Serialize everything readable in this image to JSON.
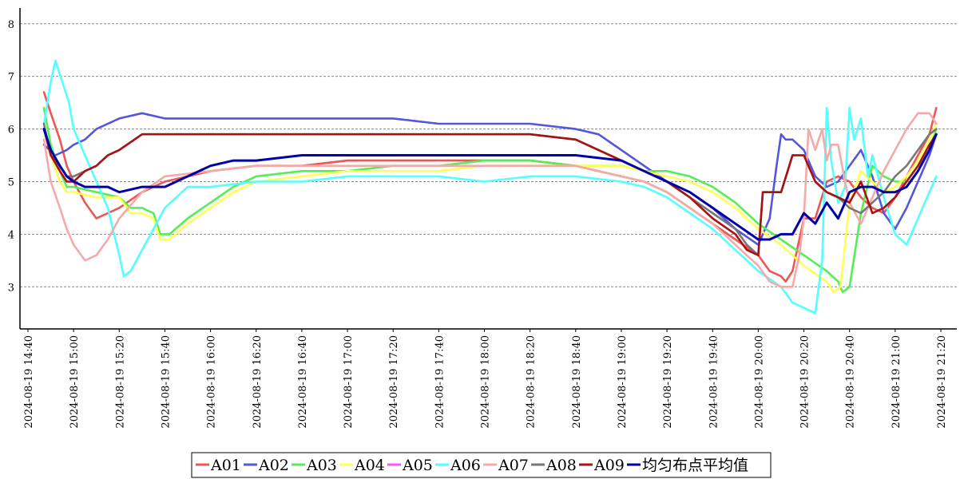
{
  "chart_data": {
    "type": "line",
    "title": "",
    "xlabel": "",
    "ylabel": "",
    "ylim": [
      2.2,
      8.3
    ],
    "yticks": [
      "3",
      "4",
      "5",
      "6",
      "7",
      "8"
    ],
    "x_range": [
      "2024-08-19 14:40",
      "2024-08-19 21:20"
    ],
    "x_tick_labels": [
      "2024-08-19 14:40",
      "2024-08-19 15:00",
      "2024-08-19 15:20",
      "2024-08-19 15:40",
      "2024-08-19 16:00",
      "2024-08-19 16:20",
      "2024-08-19 16:40",
      "2024-08-19 17:00",
      "2024-08-19 17:20",
      "2024-08-19 17:40",
      "2024-08-19 18:00",
      "2024-08-19 18:20",
      "2024-08-19 18:40",
      "2024-08-19 19:00",
      "2024-08-19 19:20",
      "2024-08-19 19:40",
      "2024-08-19 20:00",
      "2024-08-19 20:20",
      "2024-08-19 20:40",
      "2024-08-19 21:00",
      "2024-08-19 21:20"
    ],
    "grid": "horizontal dashed",
    "legend_position": "bottom",
    "series": [
      {
        "name": "A01",
        "color": "#ee5555",
        "x": [
          "14:47",
          "14:50",
          "14:54",
          "14:57",
          "15:00",
          "15:05",
          "15:10",
          "15:15",
          "15:20",
          "15:30",
          "15:40",
          "16:00",
          "16:20",
          "16:40",
          "17:00",
          "17:20",
          "17:40",
          "18:00",
          "18:20",
          "18:40",
          "18:50",
          "19:00",
          "19:10",
          "19:20",
          "19:30",
          "19:40",
          "19:50",
          "20:00",
          "20:05",
          "20:10",
          "20:12",
          "20:15",
          "20:20",
          "20:25",
          "20:30",
          "20:35",
          "20:40",
          "20:45",
          "20:50",
          "20:55",
          "21:00",
          "21:05",
          "21:10",
          "21:15",
          "21:18"
        ],
        "y": [
          6.7,
          6.3,
          5.8,
          5.3,
          5.0,
          4.6,
          4.3,
          4.4,
          4.5,
          4.8,
          5.0,
          5.2,
          5.3,
          5.3,
          5.4,
          5.4,
          5.4,
          5.4,
          5.4,
          5.3,
          5.2,
          5.1,
          5.0,
          4.8,
          4.5,
          4.2,
          3.9,
          3.6,
          3.3,
          3.2,
          3.1,
          3.3,
          4.3,
          4.3,
          5.0,
          5.1,
          5.0,
          4.7,
          4.5,
          4.4,
          4.7,
          5.1,
          5.5,
          5.9,
          6.4
        ]
      },
      {
        "name": "A02",
        "color": "#5555dd",
        "x": [
          "14:47",
          "14:52",
          "14:57",
          "15:00",
          "15:05",
          "15:10",
          "15:15",
          "15:20",
          "15:30",
          "15:40",
          "16:00",
          "16:20",
          "16:40",
          "17:00",
          "17:20",
          "17:40",
          "18:00",
          "18:20",
          "18:40",
          "18:50",
          "19:00",
          "19:10",
          "19:20",
          "19:30",
          "19:40",
          "19:50",
          "20:00",
          "20:05",
          "20:08",
          "20:10",
          "20:12",
          "20:15",
          "20:20",
          "20:25",
          "20:30",
          "20:35",
          "20:40",
          "20:45",
          "20:50",
          "20:55",
          "21:00",
          "21:05",
          "21:10",
          "21:15",
          "21:18"
        ],
        "y": [
          5.7,
          5.5,
          5.6,
          5.7,
          5.8,
          6.0,
          6.1,
          6.2,
          6.3,
          6.2,
          6.2,
          6.2,
          6.2,
          6.2,
          6.2,
          6.1,
          6.1,
          6.1,
          6.0,
          5.9,
          5.6,
          5.3,
          5.0,
          4.8,
          4.5,
          4.1,
          3.8,
          4.3,
          5.3,
          5.9,
          5.8,
          5.8,
          5.6,
          5.1,
          4.9,
          5.0,
          5.3,
          5.6,
          5.1,
          4.4,
          4.1,
          4.5,
          5.0,
          5.5,
          5.9
        ]
      },
      {
        "name": "A03",
        "color": "#55ee55",
        "x": [
          "14:47",
          "14:50",
          "14:54",
          "14:57",
          "15:00",
          "15:10",
          "15:20",
          "15:25",
          "15:30",
          "15:35",
          "15:38",
          "15:42",
          "15:50",
          "16:00",
          "16:10",
          "16:20",
          "16:40",
          "17:00",
          "17:20",
          "17:40",
          "18:00",
          "18:20",
          "18:40",
          "19:00",
          "19:10",
          "19:20",
          "19:30",
          "19:40",
          "19:50",
          "20:00",
          "20:10",
          "20:20",
          "20:30",
          "20:35",
          "20:37",
          "20:40",
          "20:45",
          "20:50",
          "20:55",
          "21:00",
          "21:05",
          "21:10",
          "21:15",
          "21:18"
        ],
        "y": [
          6.4,
          5.7,
          5.2,
          4.9,
          4.9,
          4.8,
          4.7,
          4.5,
          4.5,
          4.4,
          4.0,
          4.0,
          4.3,
          4.6,
          4.9,
          5.1,
          5.2,
          5.2,
          5.3,
          5.3,
          5.4,
          5.4,
          5.3,
          5.3,
          5.2,
          5.2,
          5.1,
          4.9,
          4.6,
          4.2,
          3.9,
          3.6,
          3.3,
          3.1,
          2.9,
          3.0,
          4.4,
          5.3,
          5.1,
          5.0,
          5.0,
          5.3,
          5.6,
          6.0
        ]
      },
      {
        "name": "A04",
        "color": "#ffff55",
        "x": [
          "14:47",
          "14:50",
          "14:54",
          "14:57",
          "15:00",
          "15:10",
          "15:20",
          "15:25",
          "15:30",
          "15:35",
          "15:38",
          "15:42",
          "15:50",
          "16:00",
          "16:10",
          "16:20",
          "16:40",
          "17:00",
          "17:20",
          "17:40",
          "18:00",
          "18:20",
          "18:40",
          "19:00",
          "19:10",
          "19:20",
          "19:30",
          "19:40",
          "19:50",
          "20:00",
          "20:10",
          "20:20",
          "20:30",
          "20:33",
          "20:36",
          "20:40",
          "20:45",
          "20:50",
          "20:55",
          "21:00",
          "21:05",
          "21:10",
          "21:15",
          "21:18"
        ],
        "y": [
          6.0,
          5.5,
          5.0,
          4.8,
          4.8,
          4.7,
          4.7,
          4.4,
          4.4,
          4.3,
          3.9,
          3.9,
          4.2,
          4.5,
          4.8,
          5.0,
          5.1,
          5.2,
          5.2,
          5.2,
          5.3,
          5.3,
          5.3,
          5.3,
          5.2,
          5.1,
          5.0,
          4.8,
          4.5,
          4.1,
          3.8,
          3.4,
          3.1,
          2.9,
          3.0,
          4.6,
          5.2,
          5.0,
          4.8,
          4.9,
          5.1,
          5.4,
          5.8,
          6.1
        ]
      },
      {
        "name": "A05",
        "color": "#ff55ff",
        "x": [],
        "y": []
      },
      {
        "name": "A06",
        "color": "#55ffff",
        "x": [
          "14:47",
          "14:50",
          "14:52",
          "14:55",
          "14:58",
          "15:00",
          "15:05",
          "15:10",
          "15:15",
          "15:20",
          "15:22",
          "15:25",
          "15:30",
          "15:35",
          "15:40",
          "15:45",
          "15:50",
          "16:00",
          "16:20",
          "16:40",
          "17:00",
          "17:20",
          "17:40",
          "18:00",
          "18:20",
          "18:40",
          "19:00",
          "19:10",
          "19:20",
          "19:30",
          "19:40",
          "19:50",
          "20:00",
          "20:10",
          "20:15",
          "20:20",
          "20:25",
          "20:28",
          "20:30",
          "20:32",
          "20:35",
          "20:38",
          "20:40",
          "20:42",
          "20:45",
          "20:48",
          "20:50",
          "20:55",
          "21:00",
          "21:05",
          "21:10",
          "21:15",
          "21:18"
        ],
        "y": [
          6.1,
          6.9,
          7.3,
          6.9,
          6.5,
          6.0,
          5.5,
          5.0,
          4.5,
          3.6,
          3.2,
          3.3,
          3.7,
          4.1,
          4.5,
          4.7,
          4.9,
          4.9,
          5.0,
          5.0,
          5.1,
          5.1,
          5.1,
          5.0,
          5.1,
          5.1,
          5.0,
          4.9,
          4.7,
          4.4,
          4.1,
          3.7,
          3.3,
          3.0,
          2.7,
          2.6,
          2.5,
          3.5,
          6.4,
          5.4,
          4.6,
          4.9,
          6.4,
          5.8,
          6.2,
          5.1,
          5.5,
          4.7,
          4.0,
          3.8,
          4.3,
          4.8,
          5.1
        ]
      },
      {
        "name": "A07",
        "color": "#f5aaaa",
        "x": [
          "14:47",
          "14:50",
          "14:54",
          "14:57",
          "15:00",
          "15:05",
          "15:10",
          "15:15",
          "15:20",
          "15:30",
          "15:40",
          "16:00",
          "16:20",
          "16:40",
          "17:00",
          "17:20",
          "17:40",
          "18:00",
          "18:20",
          "18:40",
          "19:00",
          "19:10",
          "19:20",
          "19:30",
          "19:40",
          "19:50",
          "20:00",
          "20:05",
          "20:10",
          "20:15",
          "20:18",
          "20:20",
          "20:22",
          "20:25",
          "20:28",
          "20:30",
          "20:32",
          "20:35",
          "20:38",
          "20:40",
          "20:45",
          "20:50",
          "20:55",
          "21:00",
          "21:05",
          "21:10",
          "21:15",
          "21:18"
        ],
        "y": [
          5.8,
          5.0,
          4.5,
          4.1,
          3.8,
          3.5,
          3.6,
          3.9,
          4.3,
          4.8,
          5.1,
          5.2,
          5.3,
          5.3,
          5.3,
          5.3,
          5.3,
          5.3,
          5.3,
          5.3,
          5.1,
          5.0,
          4.8,
          4.5,
          4.2,
          3.8,
          3.4,
          3.1,
          3.0,
          3.0,
          3.6,
          4.3,
          6.0,
          5.6,
          6.0,
          5.4,
          5.7,
          5.7,
          5.0,
          4.6,
          4.2,
          4.7,
          5.2,
          5.6,
          6.0,
          6.3,
          6.3,
          6.1
        ]
      },
      {
        "name": "A08",
        "color": "#777777",
        "x": [
          "14:47",
          "14:50",
          "14:54",
          "14:57",
          "15:00",
          "15:05",
          "15:10",
          "15:15",
          "15:20",
          "15:30",
          "15:40",
          "16:00",
          "16:20",
          "16:40",
          "17:00",
          "17:20",
          "17:40",
          "18:00",
          "18:20",
          "18:40",
          "18:50",
          "19:00",
          "19:10",
          "19:20",
          "19:30",
          "19:40",
          "19:50",
          "19:55",
          "20:00",
          "20:02",
          "20:05",
          "20:10",
          "20:15",
          "20:20",
          "20:25",
          "20:30",
          "20:35",
          "20:40",
          "20:45",
          "20:50",
          "20:55",
          "21:00",
          "21:05",
          "21:10",
          "21:15",
          "21:18"
        ],
        "y": [
          6.1,
          5.5,
          5.3,
          5.1,
          5.1,
          5.2,
          5.3,
          5.5,
          5.6,
          5.9,
          5.9,
          5.9,
          5.9,
          5.9,
          5.9,
          5.9,
          5.9,
          5.9,
          5.9,
          5.8,
          5.6,
          5.4,
          5.2,
          5.0,
          4.7,
          4.4,
          4.1,
          3.8,
          3.6,
          4.8,
          4.8,
          4.8,
          5.5,
          5.5,
          5.0,
          4.8,
          4.7,
          4.5,
          4.4,
          4.6,
          4.8,
          5.1,
          5.3,
          5.6,
          5.9,
          6.0
        ]
      },
      {
        "name": "A09",
        "color": "#aa1111",
        "x": [
          "14:47",
          "14:50",
          "14:54",
          "14:57",
          "15:00",
          "15:05",
          "15:10",
          "15:15",
          "15:20",
          "15:30",
          "15:40",
          "16:00",
          "16:20",
          "16:40",
          "17:00",
          "17:20",
          "17:40",
          "18:00",
          "18:20",
          "18:40",
          "18:50",
          "19:00",
          "19:10",
          "19:20",
          "19:30",
          "19:40",
          "19:50",
          "19:55",
          "20:00",
          "20:02",
          "20:05",
          "20:10",
          "20:15",
          "20:20",
          "20:25",
          "20:30",
          "20:35",
          "20:40",
          "20:45",
          "20:50",
          "20:55",
          "21:00",
          "21:05",
          "21:10",
          "21:15",
          "21:18"
        ],
        "y": [
          6.0,
          5.5,
          5.2,
          5.0,
          5.0,
          5.2,
          5.3,
          5.5,
          5.6,
          5.9,
          5.9,
          5.9,
          5.9,
          5.9,
          5.9,
          5.9,
          5.9,
          5.9,
          5.9,
          5.8,
          5.6,
          5.4,
          5.2,
          5.0,
          4.7,
          4.3,
          4.0,
          3.7,
          3.6,
          4.8,
          4.8,
          4.8,
          5.5,
          5.5,
          5.0,
          4.8,
          4.7,
          4.6,
          5.0,
          4.4,
          4.5,
          4.7,
          5.0,
          5.3,
          5.7,
          5.9
        ]
      },
      {
        "name": "均匀布点平均值",
        "color": "#0000aa",
        "x": [
          "14:47",
          "14:50",
          "14:54",
          "14:57",
          "15:00",
          "15:05",
          "15:10",
          "15:15",
          "15:20",
          "15:30",
          "15:40",
          "15:50",
          "16:00",
          "16:10",
          "16:20",
          "16:40",
          "17:00",
          "17:20",
          "17:40",
          "18:00",
          "18:20",
          "18:40",
          "19:00",
          "19:10",
          "19:20",
          "19:30",
          "19:40",
          "19:50",
          "20:00",
          "20:05",
          "20:10",
          "20:15",
          "20:20",
          "20:25",
          "20:30",
          "20:35",
          "20:40",
          "20:45",
          "20:50",
          "20:55",
          "21:00",
          "21:05",
          "21:10",
          "21:15",
          "21:18"
        ],
        "y": [
          6.0,
          5.6,
          5.3,
          5.1,
          5.0,
          4.9,
          4.9,
          4.9,
          4.8,
          4.9,
          4.9,
          5.1,
          5.3,
          5.4,
          5.4,
          5.5,
          5.5,
          5.5,
          5.5,
          5.5,
          5.5,
          5.5,
          5.4,
          5.2,
          5.0,
          4.8,
          4.5,
          4.2,
          3.9,
          3.9,
          4.0,
          4.0,
          4.4,
          4.2,
          4.6,
          4.3,
          4.8,
          4.9,
          4.9,
          4.8,
          4.8,
          4.9,
          5.2,
          5.6,
          5.9
        ]
      }
    ]
  }
}
